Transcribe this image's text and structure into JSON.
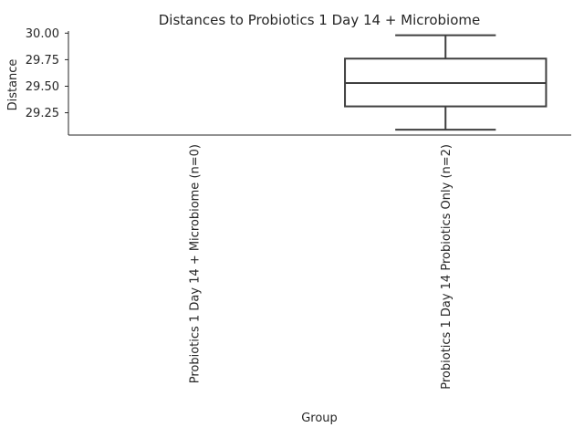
{
  "chart_data": {
    "type": "box",
    "title": "Distances to Probiotics 1 Day 14 + Microbiome",
    "xlabel": "Group",
    "ylabel": "Distance",
    "categories": [
      "Probiotics 1 Day 14 + Microbiome (n=0)",
      "Probiotics 1 Day 14 Probiotics Only (n=2)"
    ],
    "boxes": [
      null,
      {
        "whisker_low": 29.09,
        "q1": 29.31,
        "median": 29.53,
        "q3": 29.76,
        "whisker_high": 29.98
      }
    ],
    "y_ticks": [
      "29.25",
      "29.50",
      "29.75",
      "30.00"
    ],
    "ylim": [
      29.04,
      30.02
    ],
    "grid": false,
    "legend": false
  }
}
